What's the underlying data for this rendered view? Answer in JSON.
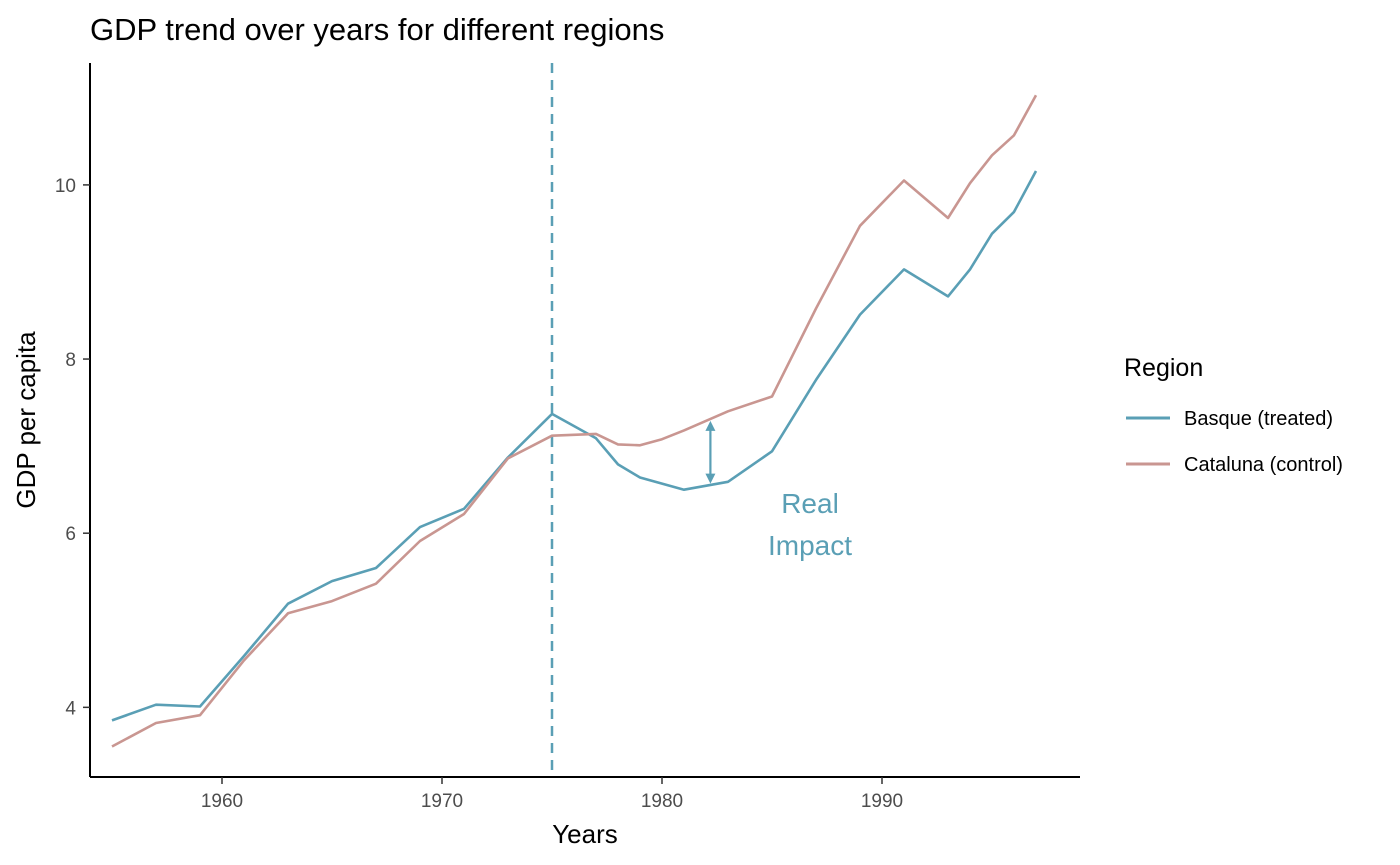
{
  "chart_data": {
    "type": "line",
    "title": "GDP trend over years for different regions",
    "xlabel": "Years",
    "ylabel": "GDP per capita",
    "xlim": [
      1954,
      1999
    ],
    "ylim": [
      3.2,
      11.4
    ],
    "xticks": [
      1960,
      1970,
      1980,
      1990
    ],
    "yticks": [
      4,
      6,
      8,
      10
    ],
    "grid": false,
    "legend": {
      "title": "Region",
      "placement": "right"
    },
    "series": [
      {
        "name": "Basque (treated)",
        "color": "#5a9fb5",
        "x": [
          1955,
          1957,
          1959,
          1961,
          1963,
          1965,
          1967,
          1969,
          1971,
          1973,
          1975,
          1977,
          1978,
          1979,
          1981,
          1983,
          1985,
          1987,
          1989,
          1991,
          1993,
          1994,
          1995,
          1996,
          1997
        ],
        "y": [
          3.85,
          4.03,
          4.01,
          4.59,
          5.19,
          5.45,
          5.6,
          6.07,
          6.28,
          6.87,
          7.37,
          7.09,
          6.79,
          6.64,
          6.5,
          6.59,
          6.94,
          7.76,
          8.51,
          9.03,
          8.72,
          9.03,
          9.44,
          9.69,
          10.16
        ]
      },
      {
        "name": "Cataluna (control)",
        "color": "#c99691",
        "x": [
          1955,
          1957,
          1959,
          1961,
          1963,
          1965,
          1967,
          1969,
          1971,
          1973,
          1975,
          1977,
          1978,
          1979,
          1980,
          1981,
          1983,
          1985,
          1987,
          1989,
          1991,
          1993,
          1994,
          1995,
          1996,
          1997
        ],
        "y": [
          3.55,
          3.82,
          3.91,
          4.54,
          5.08,
          5.22,
          5.42,
          5.91,
          6.22,
          6.86,
          7.12,
          7.14,
          7.02,
          7.01,
          7.08,
          7.18,
          7.4,
          7.57,
          8.58,
          9.53,
          10.05,
          9.62,
          10.02,
          10.34,
          10.57,
          11.03
        ]
      }
    ],
    "vline": {
      "x": 1975,
      "style": "dashed",
      "color": "#5a9fb5"
    },
    "annotations": [
      {
        "text": "Real\nImpact",
        "lines": [
          "Real",
          "Impact"
        ],
        "color": "#5a9fb5"
      },
      {
        "type": "double-arrow",
        "x": 1982.2,
        "y_from": 6.57,
        "y_to": 7.29,
        "color": "#5a9fb5"
      }
    ]
  }
}
